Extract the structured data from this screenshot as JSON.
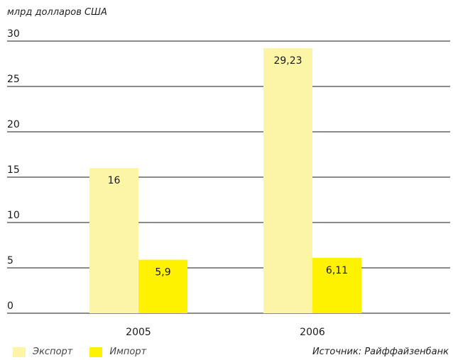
{
  "chart_data": {
    "type": "bar",
    "unit_label": "млрд долларов США",
    "categories": [
      "2005",
      "2006"
    ],
    "series": [
      {
        "name": "Экспорт",
        "values": [
          16,
          29.23
        ],
        "labels": [
          "16",
          "29,23"
        ],
        "color": "#FDF5A6"
      },
      {
        "name": "Импорт",
        "values": [
          5.9,
          6.11
        ],
        "labels": [
          "5,9",
          "6,11"
        ],
        "color": "#FFF200"
      }
    ],
    "yticks": [
      "0",
      "5",
      "10",
      "15",
      "20",
      "25",
      "30"
    ],
    "ylim": [
      0,
      30
    ],
    "grid": true,
    "legend": "bottom-left",
    "source": "Источник: Райффайзенбанк"
  }
}
